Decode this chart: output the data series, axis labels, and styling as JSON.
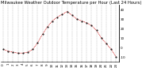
{
  "title": "Milwaukee Weather Outdoor Temperature per Hour (Last 24 Hours)",
  "hours": [
    0,
    1,
    2,
    3,
    4,
    5,
    6,
    7,
    8,
    9,
    10,
    11,
    12,
    13,
    14,
    15,
    16,
    17,
    18,
    19,
    20,
    21,
    22,
    23
  ],
  "temps": [
    -2,
    -4,
    -5,
    -6,
    -6,
    -5,
    -2,
    5,
    14,
    22,
    28,
    32,
    35,
    38,
    34,
    30,
    28,
    26,
    23,
    18,
    10,
    4,
    -2,
    -10
  ],
  "line_color": "#cc0000",
  "dot_color": "#000000",
  "bg_color": "#ffffff",
  "grid_color": "#999999",
  "ylim": [
    -15,
    45
  ],
  "yticks": [
    -10,
    0,
    10,
    20,
    30,
    40
  ],
  "ytick_labels": [
    "-10",
    "0",
    "10",
    "20",
    "30",
    "40"
  ],
  "title_fontsize": 3.8,
  "tick_fontsize": 3.0,
  "linewidth": 0.5,
  "markersize": 1.0
}
